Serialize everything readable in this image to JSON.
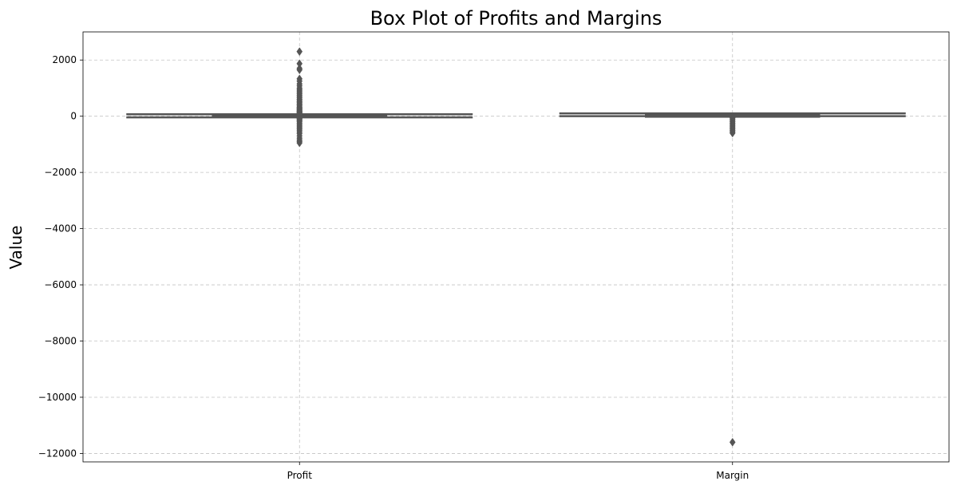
{
  "chart_data": {
    "type": "box",
    "title": "Box Plot of Profits and Margins",
    "xlabel": "",
    "ylabel": "Value",
    "categories": [
      "Profit",
      "Margin"
    ],
    "ylim": [
      -12300,
      3000
    ],
    "yticks": [
      2000,
      0,
      -2000,
      -4000,
      -6000,
      -8000,
      -10000,
      -12000
    ],
    "ytick_labels": [
      "2000",
      "0",
      "−2000",
      "−4000",
      "−6000",
      "−8000",
      "−10000",
      "−12000"
    ],
    "grid": true,
    "box_color": "#5f9ea0",
    "line_color": "#555555",
    "series": [
      {
        "category": "Profit",
        "whisker_low": -40,
        "q1": 2,
        "median": 9,
        "q3": 30,
        "whisker_high": 70,
        "outliers": [
          2300,
          1870,
          1700,
          1650,
          1330,
          1250,
          1150,
          1080,
          1000,
          950,
          900,
          850,
          800,
          750,
          700,
          650,
          600,
          560,
          520,
          480,
          440,
          400,
          360,
          320,
          290,
          260,
          230,
          200,
          180,
          160,
          140,
          120,
          100,
          90,
          80,
          -60,
          -80,
          -100,
          -130,
          -160,
          -200,
          -250,
          -300,
          -350,
          -400,
          -450,
          -500,
          -560,
          -620,
          -700,
          -780,
          -850,
          -900,
          -950
        ]
      },
      {
        "category": "Margin",
        "whisker_low": 0,
        "q1": 10,
        "median": 30,
        "q3": 50,
        "whisker_high": 100,
        "outliers": [
          -60,
          -100,
          -150,
          -200,
          -250,
          -300,
          -350,
          -400,
          -450,
          -500,
          -550,
          -600,
          -11600
        ]
      }
    ]
  }
}
